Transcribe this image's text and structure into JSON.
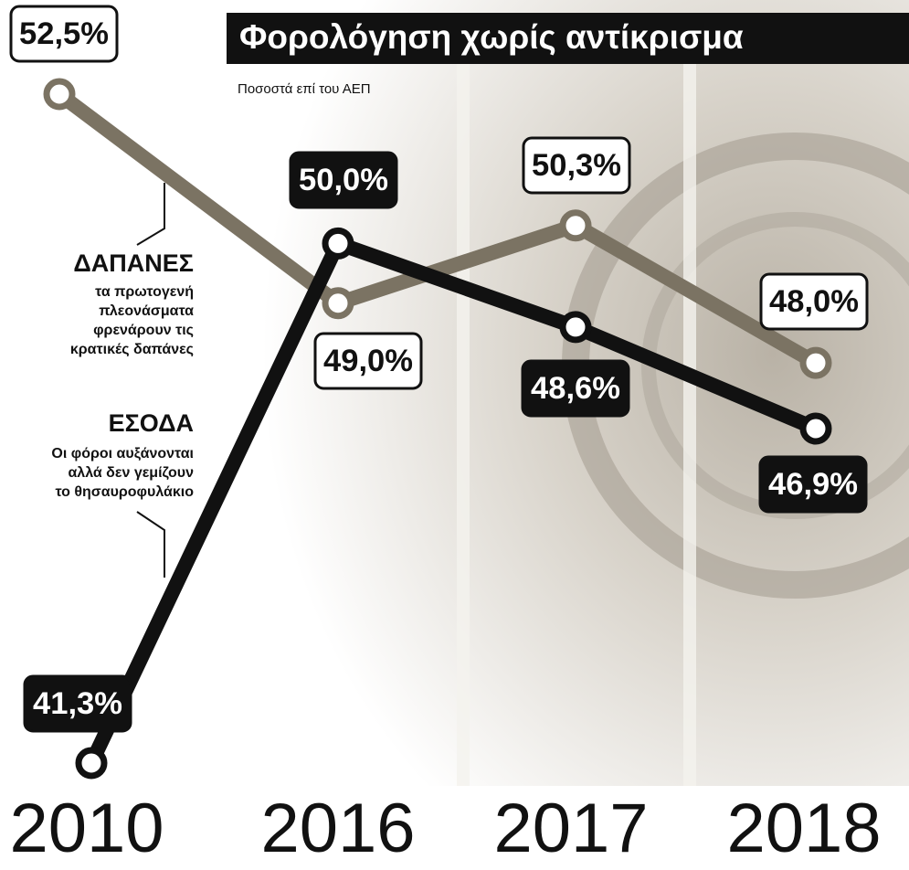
{
  "chart_data": {
    "type": "line",
    "title": "Φορολόγηση χωρίς αντίκρισμα",
    "subtitle": "Ποσοστά επί του ΑΕΠ",
    "categories": [
      "2010",
      "2016",
      "2017",
      "2018"
    ],
    "series": [
      {
        "name": "ΔΑΠΑΝΕΣ",
        "color": "#7b7363",
        "description": [
          "τα πρωτογενή",
          "πλεονάσματα",
          "φρενάρουν τις",
          "κρατικές δαπάνες"
        ],
        "values": [
          52.5,
          49.0,
          50.3,
          48.0
        ],
        "value_labels": [
          "52,5%",
          "49,0%",
          "50,3%",
          "48,0%"
        ]
      },
      {
        "name": "ΕΣΟΔΑ",
        "color": "#111111",
        "description": [
          "Οι φόροι αυξάνονται",
          "αλλά δεν γεμίζουν",
          "το θησαυροφυλάκιο"
        ],
        "values": [
          41.3,
          50.0,
          48.6,
          46.9
        ],
        "value_labels": [
          "41,3%",
          "50,0%",
          "48,6%",
          "46,9%"
        ]
      }
    ]
  }
}
